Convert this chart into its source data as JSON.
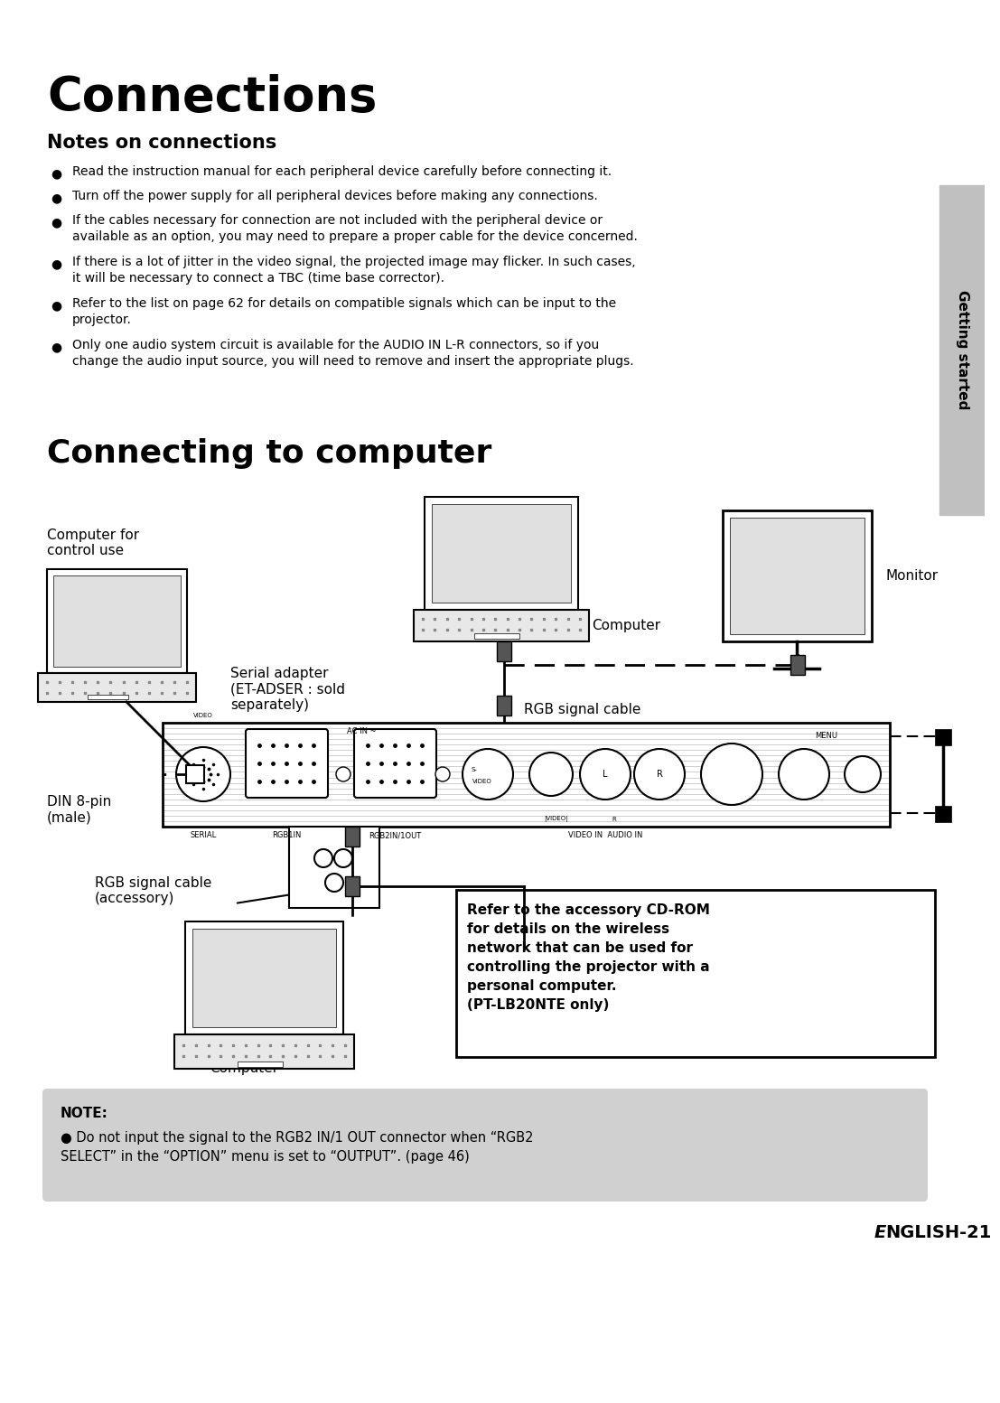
{
  "title": "Connections",
  "subtitle": "Notes on connections",
  "section2_title": "Connecting to computer",
  "bg_color": "#ffffff",
  "sidebar_color": "#c0c0c0",
  "note_bg_color": "#d0d0d0",
  "bullet_points": [
    "Read the instruction manual for each peripheral device carefully before connecting it.",
    "Turn off the power supply for all peripheral devices before making any connections.",
    "If the cables necessary for connection are not included with the peripheral device or\n    available as an option, you may need to prepare a proper cable for the device concerned.",
    "If there is a lot of jitter in the video signal, the projected image may flicker. In such cases,\n    it will be necessary to connect a TBC (time base corrector).",
    "Refer to the list on page 62 for details on compatible signals which can be input to the\n    projector.",
    "Only one audio system circuit is available for the AUDIO IN L-R connectors, so if you\n    change the audio input source, you will need to remove and insert the appropriate plugs."
  ],
  "sidebar_text": "Getting started",
  "diagram_labels": {
    "computer_for_control": "Computer for\ncontrol use",
    "serial_adapter": "Serial adapter\n(ET-ADSER : sold\nseparately)",
    "computer": "Computer",
    "monitor": "Monitor",
    "rgb_signal_cable": "RGB signal cable",
    "din_8pin": "DIN 8-pin\n(male)",
    "rgb_accessory": "RGB signal cable\n(accessory)",
    "computer2": "Computer"
  },
  "cdrom_box_text": "Refer to the accessory CD-ROM\nfor details on the wireless\nnetwork that can be used for\ncontrolling the projector with a\npersonal computer.\n(PT-LB20NTE only)",
  "note_title": "NOTE:",
  "note_text": "Do not input the signal to the RGB2 IN/1 OUT connector when “RGB2\nSELECT” in the “OPTION” menu is set to “OUTPUT”. (page 46)",
  "page_number_italic": "E",
  "page_number_regular": "NGLISH-21"
}
